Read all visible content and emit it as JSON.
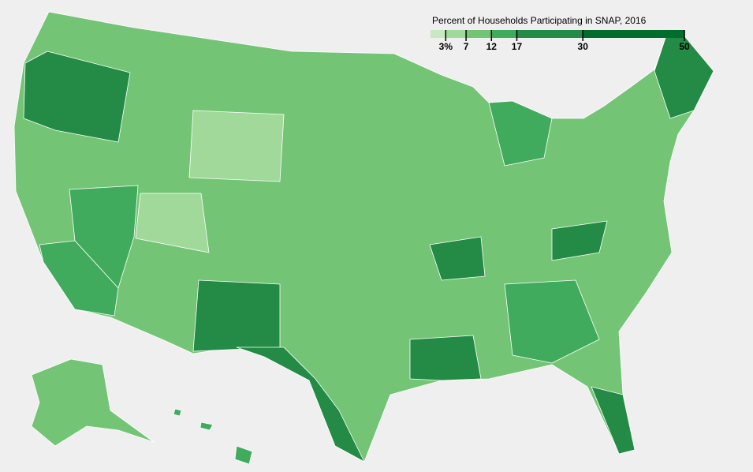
{
  "legend": {
    "title": "Percent of Households Participating in SNAP, 2016",
    "xlim": [
      0,
      50
    ],
    "ticks": [
      {
        "value": 3,
        "label": "3%"
      },
      7,
      12,
      17,
      30,
      50
    ],
    "colors": [
      "#c7e9c0",
      "#a1d99b",
      "#74c476",
      "#41ab5d",
      "#238b45",
      "#006d2c"
    ]
  }
}
